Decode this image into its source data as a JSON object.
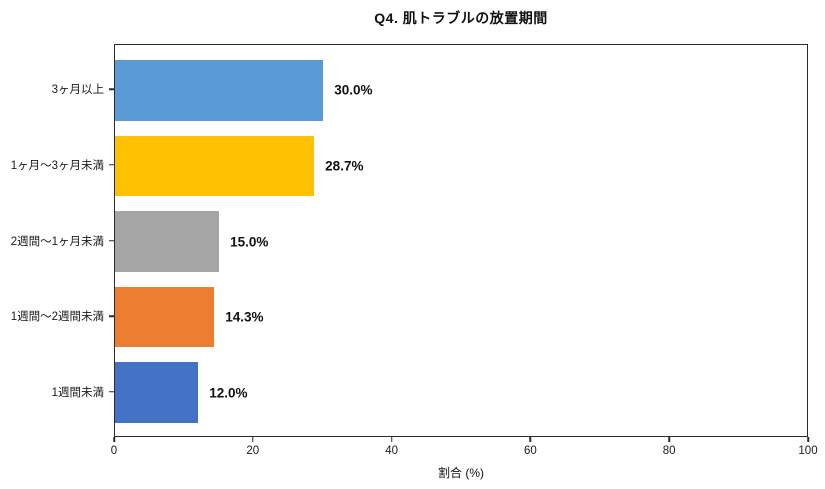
{
  "chart_data": {
    "type": "bar",
    "orientation": "horizontal",
    "title": "Q4. 肌トラブルの放置期間",
    "categories": [
      "3ヶ月以上",
      "1ヶ月〜3ヶ月未満",
      "2週間〜1ヶ月未満",
      "1週間〜2週間未満",
      "1週間未満"
    ],
    "values": [
      30.0,
      28.7,
      15.0,
      14.3,
      12.0
    ],
    "value_labels": [
      "30.0%",
      "28.7%",
      "15.0%",
      "14.3%",
      "12.0%"
    ],
    "bar_colors": [
      "#5B9BD5",
      "#FFC000",
      "#A5A5A5",
      "#ED7D31",
      "#4472C4"
    ],
    "xlabel": "割合 (%)",
    "xlim": [
      0,
      100
    ],
    "xticks": [
      "0",
      "20",
      "40",
      "60",
      "80",
      "100"
    ],
    "grid": false,
    "frame": "full-box",
    "axis_color": "#2b2b2b"
  }
}
